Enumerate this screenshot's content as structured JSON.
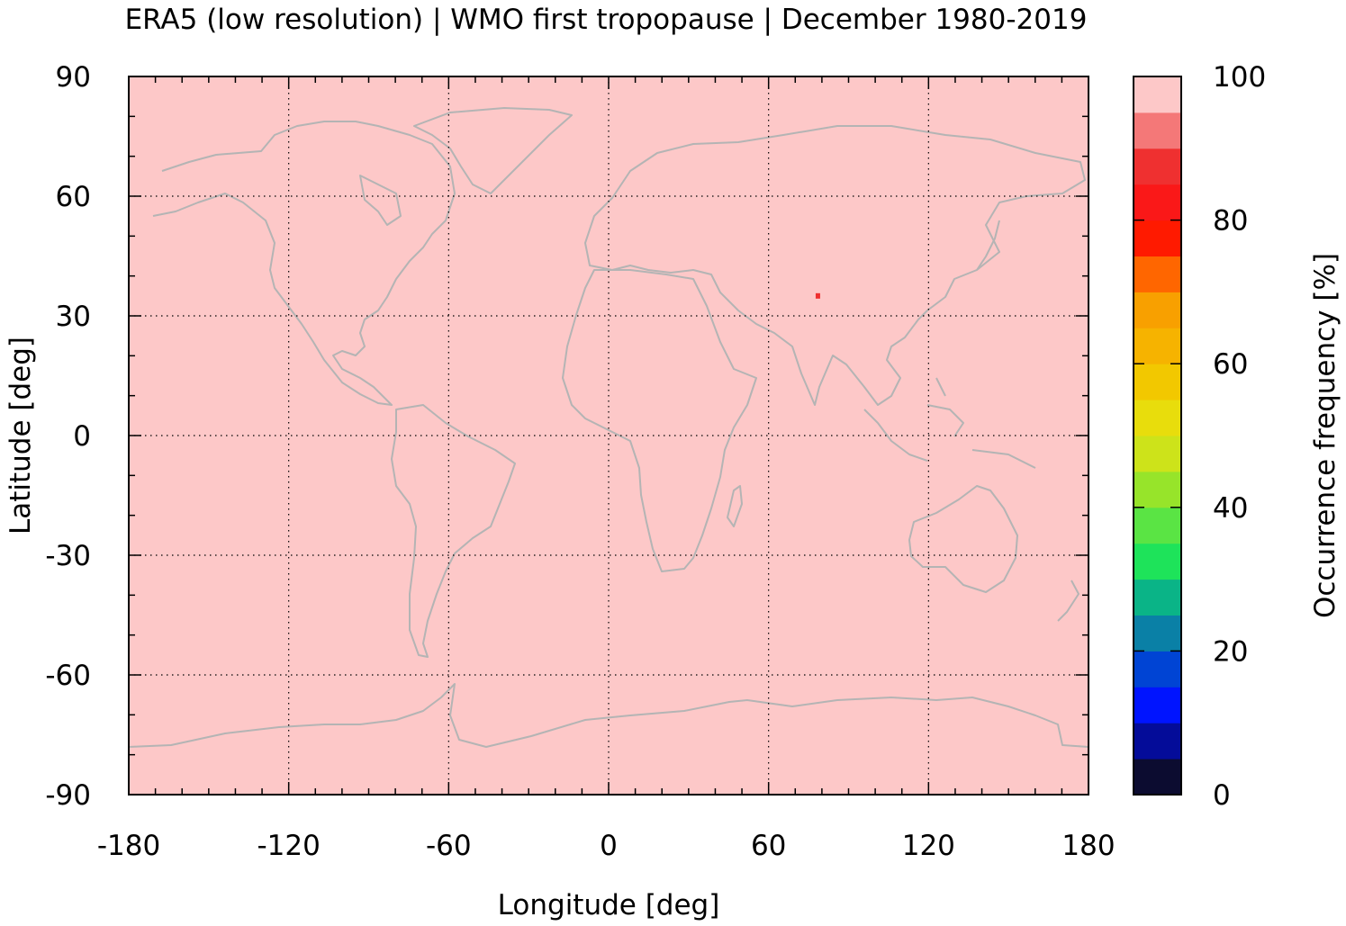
{
  "chart_data": {
    "type": "heatmap",
    "title": "ERA5 (low resolution) | WMO first tropopause | December 1980-2019",
    "xlabel": "Longitude [deg]",
    "ylabel": "Latitude [deg]",
    "colorbar_label": "Occurrence frequency [%]",
    "xlim": [
      -180,
      180
    ],
    "ylim": [
      -90,
      90
    ],
    "xticks": [
      -180,
      -120,
      -60,
      0,
      60,
      120,
      180
    ],
    "yticks": [
      -90,
      -60,
      -30,
      0,
      30,
      60,
      90
    ],
    "xtick_labels": [
      "-180",
      "-120",
      "-60",
      "0",
      "60",
      "120",
      "180"
    ],
    "ytick_labels": [
      "-90",
      "-60",
      "-30",
      "0",
      "30",
      "60",
      "90"
    ],
    "grid": true,
    "background_value": 100,
    "anomalies": [
      {
        "lon": 78.5,
        "lat": 35,
        "value": 85
      }
    ],
    "colorbar": {
      "range": [
        0,
        100
      ],
      "ticks": [
        0,
        20,
        40,
        60,
        80,
        100
      ],
      "tick_labels": [
        "0",
        "20",
        "40",
        "60",
        "80",
        "100"
      ],
      "colors": [
        "#0c0c30",
        "#040c99",
        "#0014ff",
        "#0044d4",
        "#0a80a6",
        "#0ab487",
        "#1ee35a",
        "#5ae444",
        "#97e42a",
        "#cde31a",
        "#e8dd0c",
        "#f2c800",
        "#f6b300",
        "#f8a000",
        "#ff6600",
        "#ff1a00",
        "#fa1818",
        "#ef3030",
        "#f47878",
        "#fdc8c8"
      ]
    }
  }
}
